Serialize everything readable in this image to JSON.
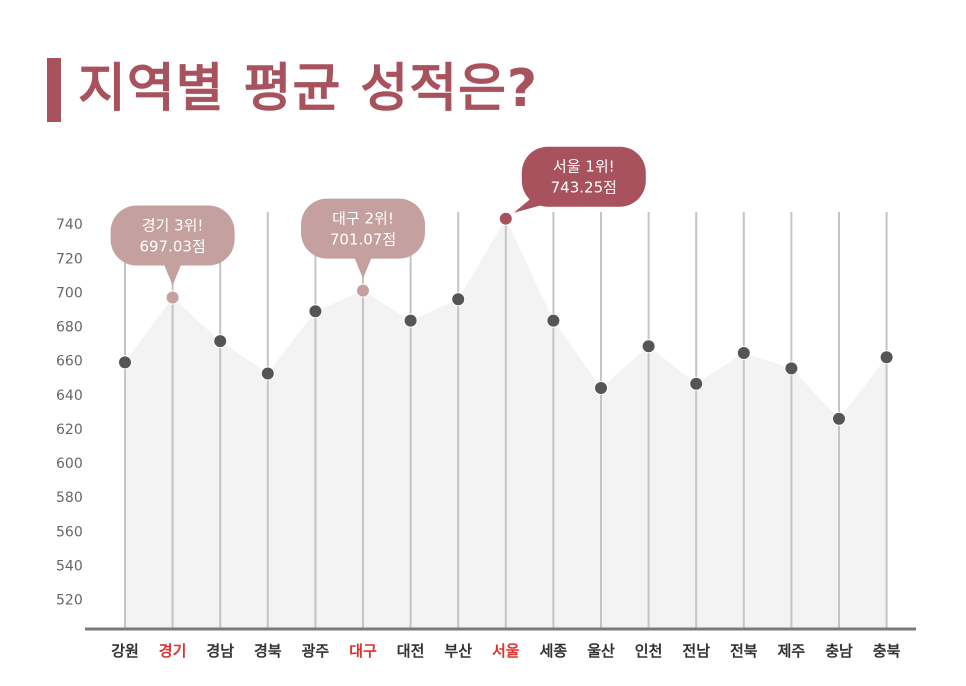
{
  "title": "지역별 평균 성적은?",
  "chart_data": {
    "type": "area",
    "title": "지역별 평균 성적은?",
    "categories": [
      "강원",
      "경기",
      "경남",
      "경북",
      "광주",
      "대구",
      "대전",
      "부산",
      "서울",
      "세종",
      "울산",
      "인천",
      "전남",
      "전북",
      "제주",
      "충남",
      "충북"
    ],
    "values": [
      659,
      697.03,
      671.5,
      652.5,
      689,
      701.07,
      683.5,
      696,
      743.25,
      683.5,
      644,
      668.5,
      646.5,
      664.5,
      655.5,
      626,
      662
    ],
    "yticks": [
      520,
      540,
      560,
      580,
      600,
      620,
      640,
      660,
      680,
      700,
      720,
      740
    ],
    "ylim": [
      508,
      746
    ],
    "grid": "vertical",
    "highlight_categories": [
      "경기",
      "대구",
      "서울"
    ],
    "callouts": [
      {
        "category": "경기",
        "line1": "경기 3위!",
        "line2": "697.03점",
        "color": "#c4a19e"
      },
      {
        "category": "대구",
        "line1": "대구 2위!",
        "line2": "701.07점",
        "color": "#c4a19e"
      },
      {
        "category": "서울",
        "line1": "서울 1위!",
        "line2": "743.25점",
        "color": "#a8525e"
      }
    ],
    "colors": {
      "point": "#555555",
      "highlight_point": "#c4a19e",
      "top_point": "#a8525e",
      "area": "#f3f3f3",
      "grid": "#c4c4c4",
      "axis": "#7a7a7a",
      "highlight_label": "#e0312d",
      "label": "#333333",
      "tick": "#666666"
    }
  }
}
